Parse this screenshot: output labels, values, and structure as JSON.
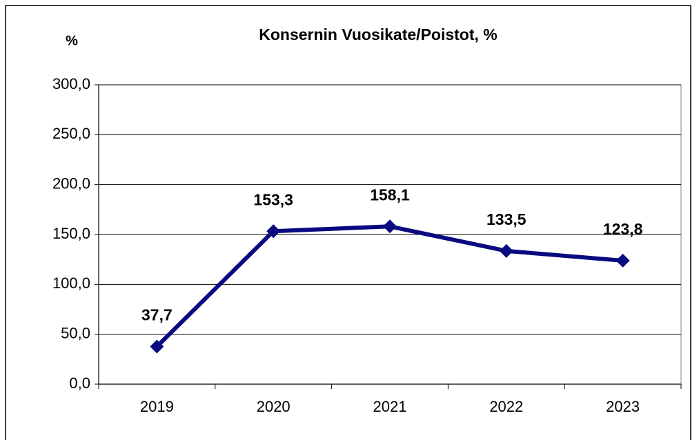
{
  "chart_data": {
    "type": "line",
    "title": "Konsernin Vuosikate/Poistot, %",
    "y_label": "%",
    "categories": [
      "2019",
      "2020",
      "2021",
      "2022",
      "2023"
    ],
    "values": [
      37.7,
      153.3,
      158.1,
      133.5,
      123.8
    ],
    "value_labels": [
      "37,7",
      "153,3",
      "158,1",
      "133,5",
      "123,8"
    ],
    "color": "#0a0a80",
    "ylim": [
      0,
      300
    ],
    "yticks": [
      {
        "value": 0,
        "label": "0,0"
      },
      {
        "value": 50,
        "label": "50,0"
      },
      {
        "value": 100,
        "label": "100,0"
      },
      {
        "value": 150,
        "label": "150,0"
      },
      {
        "value": 200,
        "label": "200,0"
      },
      {
        "value": 250,
        "label": "250,0"
      },
      {
        "value": 300,
        "label": "300,0"
      }
    ],
    "grid": true
  }
}
